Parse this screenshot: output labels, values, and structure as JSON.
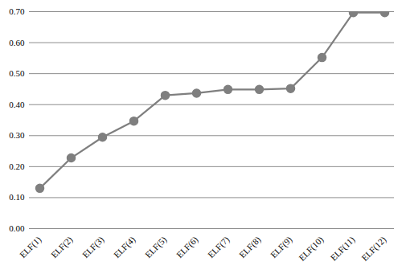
{
  "chart_data": {
    "type": "line",
    "categories": [
      "ELF(1)",
      "ELF(2)",
      "ELF(3)",
      "ELF(4)",
      "ELF(5)",
      "ELF(6)",
      "ELF(7)",
      "ELF(8)",
      "ELF(9)",
      "ELF(10)",
      "ELF(11)",
      "ELF(12)"
    ],
    "values": [
      0.13,
      0.228,
      0.295,
      0.347,
      0.43,
      0.437,
      0.449,
      0.449,
      0.452,
      0.552,
      0.697,
      0.697
    ],
    "color": "#7f7f7f",
    "marker": "circle",
    "line_style": "solid",
    "ylim": [
      0,
      0.7
    ],
    "yticks": [
      0,
      0.1,
      0.2,
      0.3,
      0.4,
      0.5,
      0.6,
      0.7
    ],
    "grid": true
  }
}
